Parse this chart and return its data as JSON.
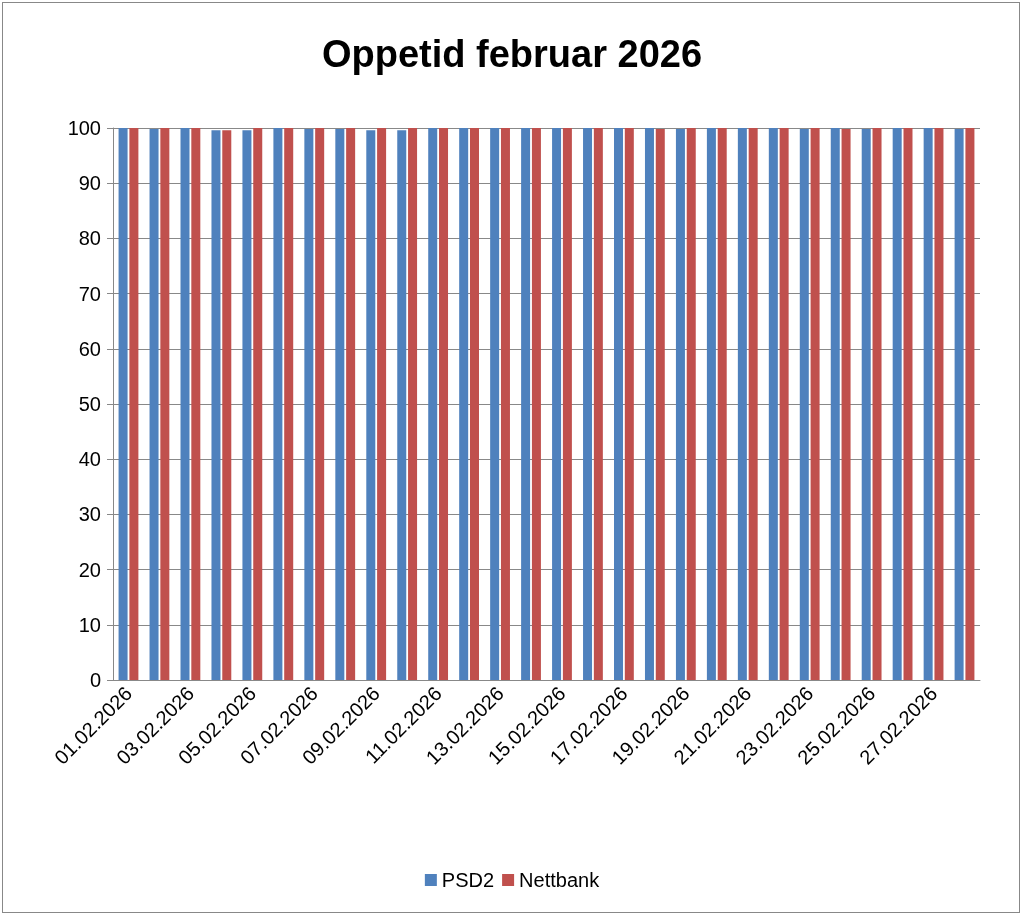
{
  "chart_data": {
    "type": "bar",
    "title": "Oppetid februar 2026",
    "categories": [
      "01.02.2026",
      null,
      "03.02.2026",
      null,
      "05.02.2026",
      null,
      "07.02.2026",
      null,
      "09.02.2026",
      null,
      "11.02.2026",
      null,
      "13.02.2026",
      null,
      "15.02.2026",
      null,
      "17.02.2026",
      null,
      "19.02.2026",
      null,
      "21.02.2026",
      null,
      "23.02.2026",
      null,
      "25.02.2026",
      null,
      "27.02.2026",
      null
    ],
    "series": [
      {
        "name": "PSD2",
        "color": "#4f81bd",
        "values": [
          100,
          99.8,
          100,
          99.6,
          99.6,
          100,
          99.8,
          99.8,
          99.6,
          99.6,
          100,
          100,
          100,
          100,
          100,
          100,
          100,
          100,
          99.8,
          100,
          100,
          100,
          99.8,
          100,
          99.8,
          100,
          100,
          99.8
        ]
      },
      {
        "name": "Nettbank",
        "color": "#c0504d",
        "values": [
          100,
          100,
          100,
          99.6,
          100,
          100,
          100,
          100,
          100,
          100,
          100,
          100,
          100,
          100,
          100,
          100,
          100,
          99.8,
          100,
          100,
          100,
          100,
          100,
          99.8,
          100,
          100,
          100,
          100
        ]
      }
    ],
    "ylim": [
      0,
      100
    ],
    "yticks": [
      0,
      10,
      20,
      30,
      40,
      50,
      60,
      70,
      80,
      90,
      100
    ],
    "grid": "y",
    "legend": "bottom"
  }
}
